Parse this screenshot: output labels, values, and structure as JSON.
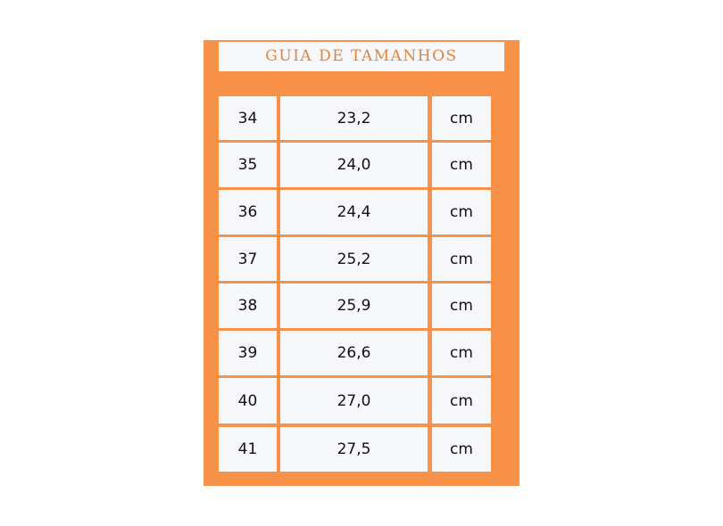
{
  "title": "GUIA DE TAMANHOS",
  "colors": {
    "background": "#f99249",
    "cell": "#f7f8fb",
    "title_text": "#e0843c"
  },
  "rows": [
    {
      "size": "34",
      "length": "23,2",
      "unit": "cm"
    },
    {
      "size": "35",
      "length": "24,0",
      "unit": "cm"
    },
    {
      "size": "36",
      "length": "24,4",
      "unit": "cm"
    },
    {
      "size": "37",
      "length": "25,2",
      "unit": "cm"
    },
    {
      "size": "38",
      "length": "25,9",
      "unit": "cm"
    },
    {
      "size": "39",
      "length": "26,6",
      "unit": "cm"
    },
    {
      "size": "40",
      "length": "27,0",
      "unit": "cm"
    },
    {
      "size": "41",
      "length": "27,5",
      "unit": "cm"
    }
  ]
}
